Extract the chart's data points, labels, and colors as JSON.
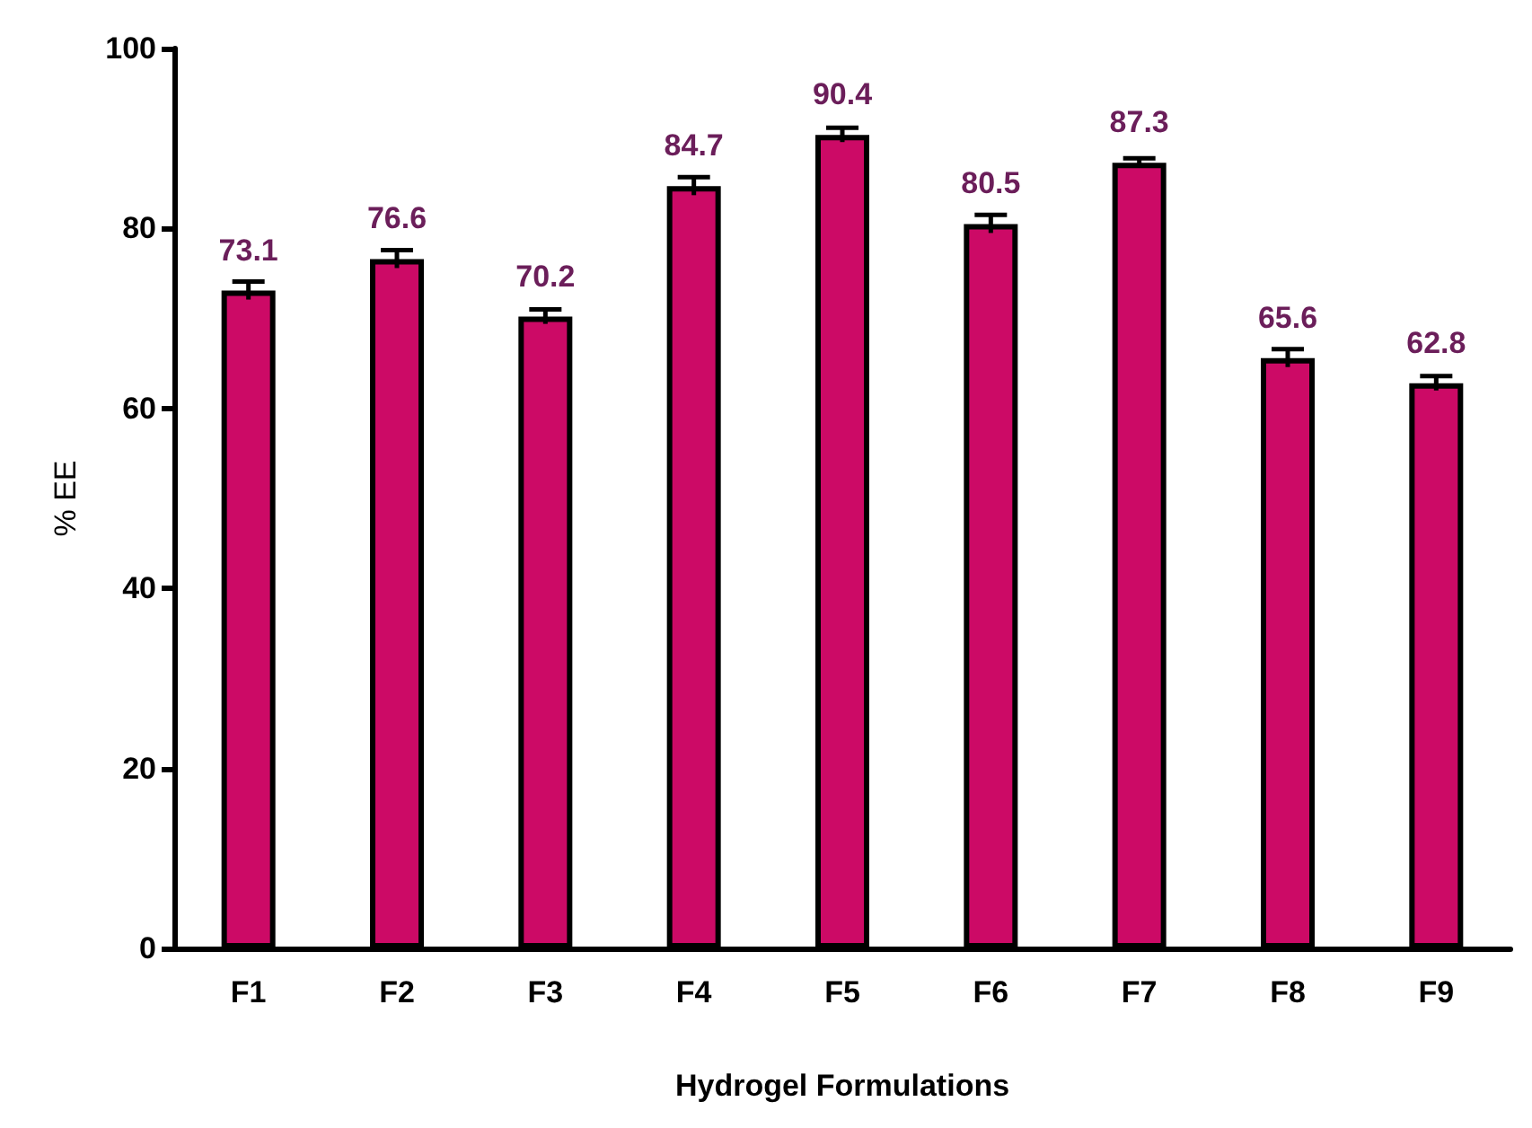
{
  "chart_data": {
    "type": "bar",
    "xlabel": "Hydrogel Formulations",
    "ylabel": "% EE",
    "categories": [
      "F1",
      "F2",
      "F3",
      "F4",
      "F5",
      "F6",
      "F7",
      "F8",
      "F9"
    ],
    "values": [
      73.1,
      76.6,
      70.2,
      84.7,
      90.4,
      80.5,
      87.3,
      65.6,
      62.8
    ],
    "errors": [
      1,
      1,
      0.8,
      1,
      0.8,
      1,
      0.5,
      1,
      0.8
    ],
    "color": "#cc0a66",
    "ylim": [
      0,
      100
    ],
    "yticks": [
      0,
      20,
      40,
      60,
      80,
      100
    ],
    "data_labels": true,
    "grid": false
  }
}
